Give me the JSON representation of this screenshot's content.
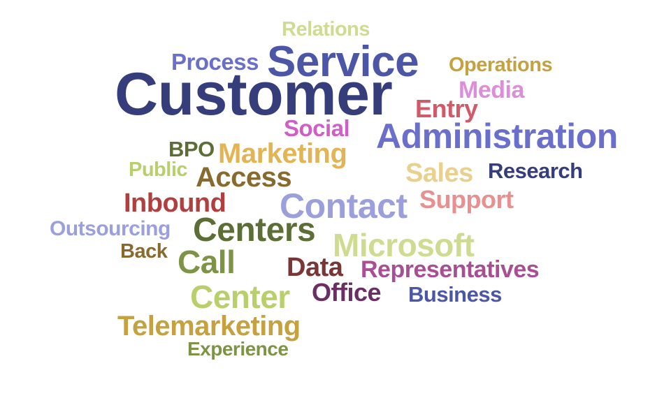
{
  "words": [
    {
      "id": "customer",
      "text": "Customer",
      "color": "#353e7b"
    },
    {
      "id": "service",
      "text": "Service",
      "color": "#4c56a6"
    },
    {
      "id": "administration",
      "text": "Administration",
      "color": "#6a6fcc"
    },
    {
      "id": "contact",
      "text": "Contact",
      "color": "#9b9fdc"
    },
    {
      "id": "centers",
      "text": "Centers",
      "color": "#5c6e36"
    },
    {
      "id": "microsoft",
      "text": "Microsoft",
      "color": "#cfdb90"
    },
    {
      "id": "call",
      "text": "Call",
      "color": "#7d9345"
    },
    {
      "id": "center",
      "text": "Center",
      "color": "#b9cf6c"
    },
    {
      "id": "telemarketing",
      "text": "Telemarketing",
      "color": "#c5a23f"
    },
    {
      "id": "marketing",
      "text": "Marketing",
      "color": "#e3b454"
    },
    {
      "id": "access",
      "text": "Access",
      "color": "#876a2e"
    },
    {
      "id": "inbound",
      "text": "Inbound",
      "color": "#b23f3f"
    },
    {
      "id": "representatives",
      "text": "Representatives",
      "color": "#a74e95"
    },
    {
      "id": "sales",
      "text": "Sales",
      "color": "#ead08f"
    },
    {
      "id": "support",
      "text": "Support",
      "color": "#e89090"
    },
    {
      "id": "data",
      "text": "Data",
      "color": "#7b3535"
    },
    {
      "id": "office",
      "text": "Office",
      "color": "#6b2f63"
    },
    {
      "id": "research",
      "text": "Research",
      "color": "#353e7b"
    },
    {
      "id": "business",
      "text": "Business",
      "color": "#4c56a6"
    },
    {
      "id": "process",
      "text": "Process",
      "color": "#6a6fcc"
    },
    {
      "id": "operations",
      "text": "Operations",
      "color": "#c5a23f"
    },
    {
      "id": "media",
      "text": "Media",
      "color": "#dc8fd8"
    },
    {
      "id": "entry",
      "text": "Entry",
      "color": "#d15a68"
    },
    {
      "id": "social",
      "text": "Social",
      "color": "#cf5fc5"
    },
    {
      "id": "relations",
      "text": "Relations",
      "color": "#cfdb90"
    },
    {
      "id": "bpo",
      "text": "BPO",
      "color": "#5c6e36"
    },
    {
      "id": "public",
      "text": "Public",
      "color": "#b9cf6c"
    },
    {
      "id": "outsourcing",
      "text": "Outsourcing",
      "color": "#9b9fdc"
    },
    {
      "id": "back",
      "text": "Back",
      "color": "#876a2e"
    },
    {
      "id": "experience",
      "text": "Experience",
      "color": "#7d9345"
    }
  ]
}
